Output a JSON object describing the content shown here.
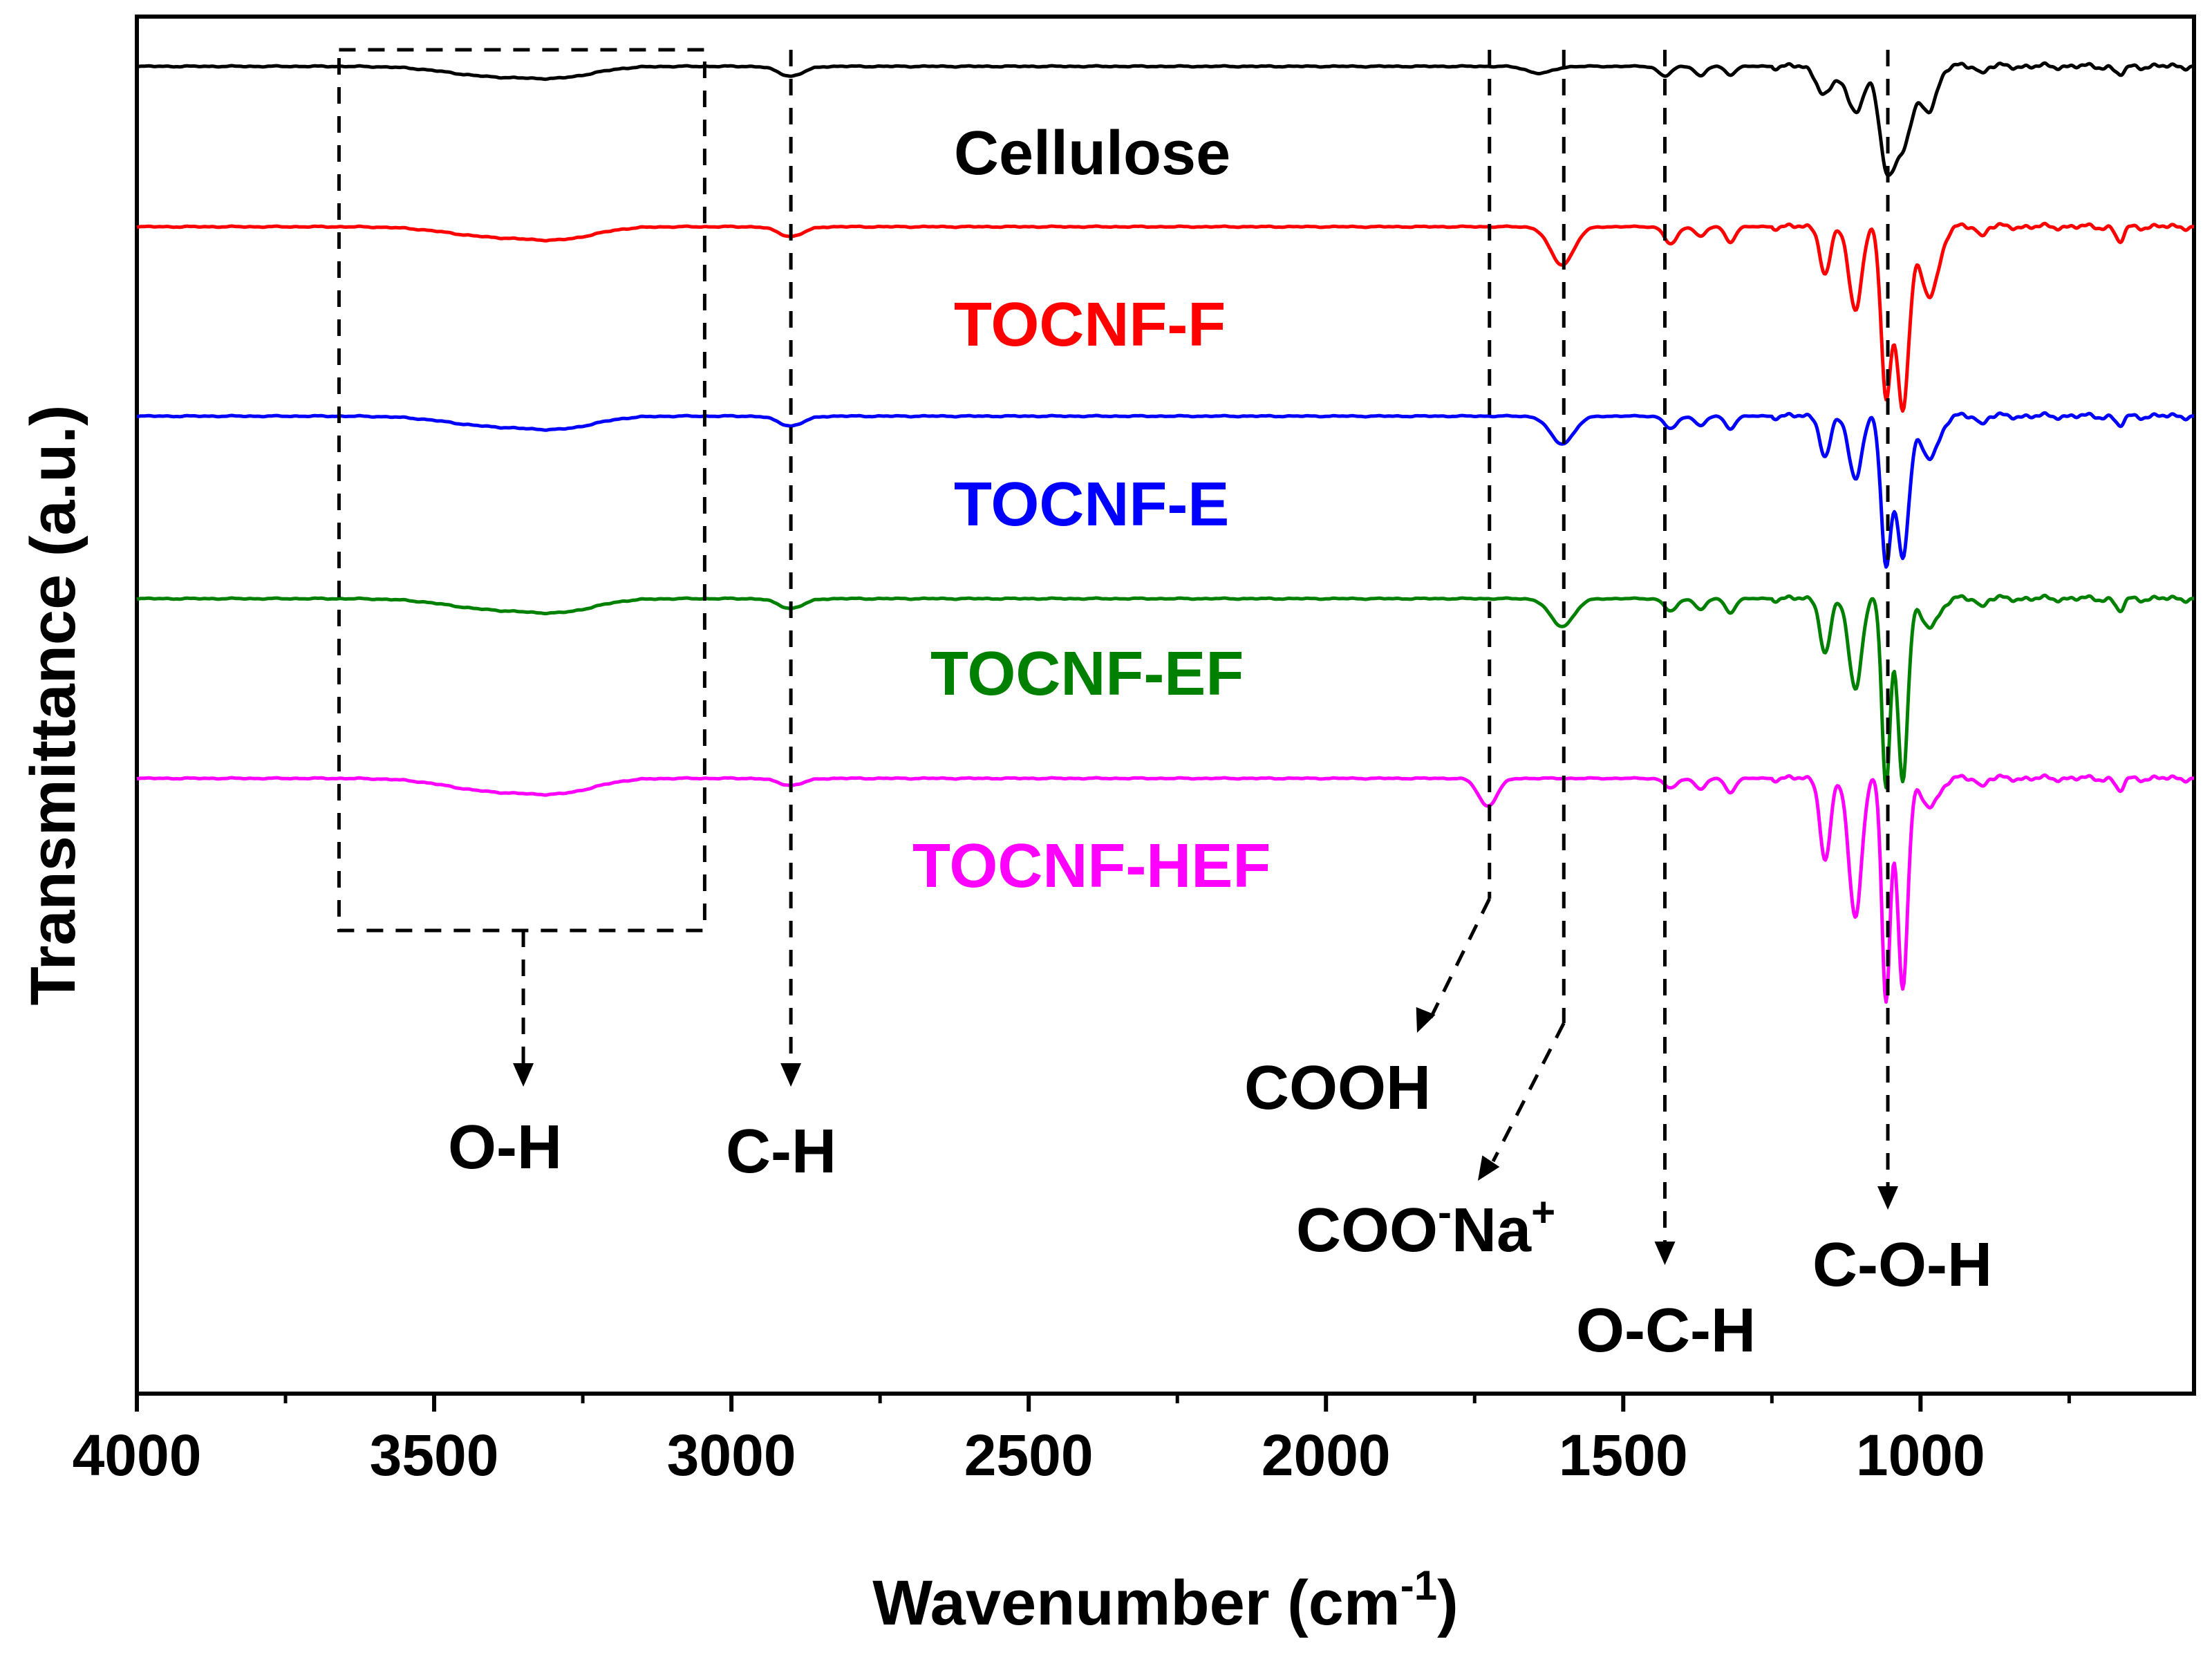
{
  "chart_data": {
    "type": "line",
    "title": "",
    "xlabel": "Wavenumber (cm",
    "xlabel_sup": "-1",
    "xlabel_close": ")",
    "ylabel": "Transmittance (a.u.)",
    "xlim": [
      4000,
      540
    ],
    "x_reversed": true,
    "xticks": [
      4000,
      3500,
      3000,
      2500,
      2000,
      1500,
      1000
    ],
    "xtick_labels": [
      "4000",
      "3500",
      "3000",
      "2500",
      "2000",
      "1500",
      "1000"
    ],
    "series": [
      {
        "name": "Cellulose",
        "color": "#000000",
        "offset": 0
      },
      {
        "name": "TOCNF-F",
        "color": "#ff0000",
        "offset": 1
      },
      {
        "name": "TOCNF-E",
        "color": "#0000ff",
        "offset": 2
      },
      {
        "name": "TOCNF-EF",
        "color": "#008000",
        "offset": 3
      },
      {
        "name": "TOCNF-HEF",
        "color": "#ff00ff",
        "offset": 4
      }
    ],
    "annotations": [
      {
        "label": "O-H",
        "wavenumber": 3350
      },
      {
        "label": "C-H",
        "wavenumber": 2900
      },
      {
        "label": "COOH",
        "wavenumber": 1725
      },
      {
        "label": "COO",
        "sup1": "-",
        "label2": "Na",
        "sup2": "+",
        "wavenumber": 1600
      },
      {
        "label": "O-C-H",
        "wavenumber": 1430
      },
      {
        "label": "C-O-H",
        "wavenumber": 1055
      }
    ],
    "grid": false
  }
}
